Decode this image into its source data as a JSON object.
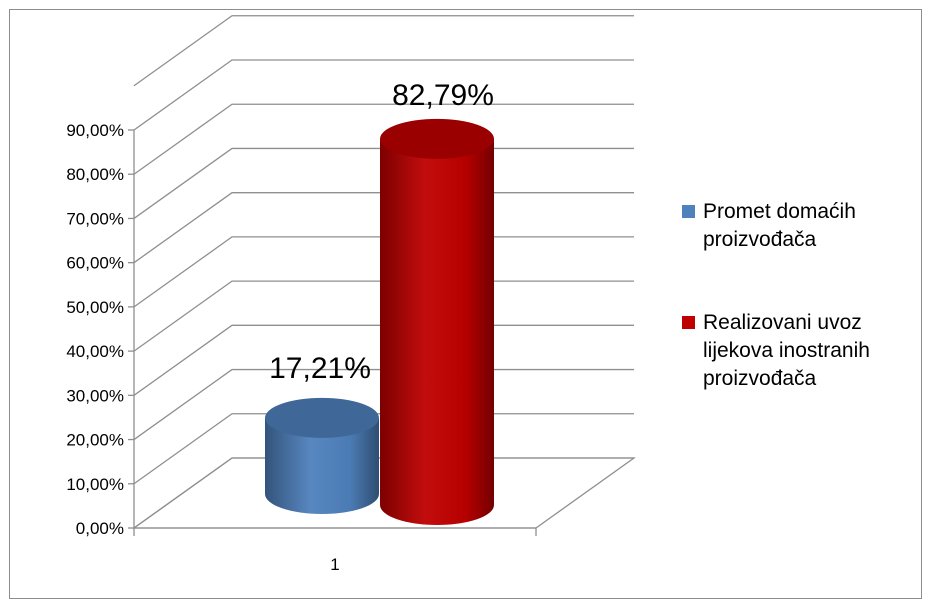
{
  "chart_data": {
    "type": "bar",
    "categories": [
      "1"
    ],
    "series": [
      {
        "name": "Promet domaćih proizvođača",
        "values": [
          17.21
        ],
        "color": "#4f81bd",
        "data_label": "17,21%",
        "legend_lines": [
          "Promet domaćih",
          "proizvođača"
        ]
      },
      {
        "name": "Realizovani uvoz lijekova inostranih proizvođača",
        "values": [
          82.79
        ],
        "color": "#c00000",
        "data_label": "82,79%",
        "legend_lines": [
          "Realizovani uvoz",
          "lijekova inostranih",
          "proizvođača"
        ]
      }
    ],
    "ylim": [
      0,
      90
    ],
    "y_ticks": [
      "0,00%",
      "10,00%",
      "20,00%",
      "30,00%",
      "40,00%",
      "50,00%",
      "60,00%",
      "70,00%",
      "80,00%",
      "90,00%"
    ],
    "grid": true,
    "three_d": true,
    "legend_position": "right"
  }
}
